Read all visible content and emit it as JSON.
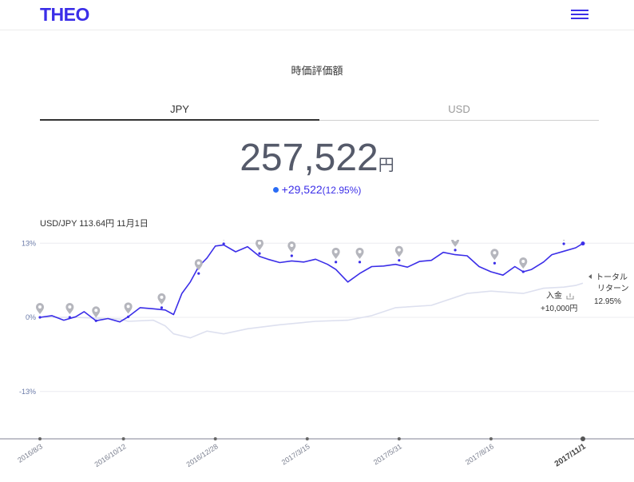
{
  "header": {
    "logo": "THEO",
    "menu_icon": "hamburger-menu-icon"
  },
  "page": {
    "title": "時価評価額"
  },
  "tabs": [
    {
      "label": "JPY",
      "active": true
    },
    {
      "label": "USD",
      "active": false
    }
  ],
  "summary": {
    "value": "257,522",
    "unit": "円",
    "change": "+29,522",
    "change_pct": "(12.95%)"
  },
  "rate_line": "USD/JPY 113.64円 11月1日",
  "annotations": {
    "total_return_label_1": "トータル",
    "total_return_label_2": "リターン",
    "total_return_value": "12.95%",
    "deposit_label": "入金",
    "deposit_amount": "+10,000円"
  },
  "colors": {
    "brand": "#3b2ee8",
    "benchmark": "#dde0ef",
    "marker": "#b0b0b8"
  },
  "chart_data": {
    "type": "line",
    "y_tick_labels": [
      "13%",
      "0%",
      "-13%"
    ],
    "y_ticks": [
      13,
      0,
      -13
    ],
    "ylim": [
      -21.3,
      13.6
    ],
    "xlim": [
      "2016/8/3",
      "2017/11/1"
    ],
    "x_tick_labels": [
      "2016/8/3",
      "2016/10/12",
      "2016/12/28",
      "2017/3/15",
      "2017/5/31",
      "2017/8/16",
      "2017/11/1"
    ],
    "x_tick_dates": [
      "2016-08-03",
      "2016-10-12",
      "2016-12-28",
      "2017-03-15",
      "2017-05-31",
      "2017-08-16",
      "2017-11-01"
    ],
    "series": [
      {
        "role": "portfolio",
        "points": [
          [
            "2016-08-03",
            0
          ],
          [
            "2016-08-13",
            0.3
          ],
          [
            "2016-08-23",
            -0.5
          ],
          [
            "2016-09-02",
            0.1
          ],
          [
            "2016-09-09",
            1.0
          ],
          [
            "2016-09-19",
            -0.6
          ],
          [
            "2016-09-29",
            -0.2
          ],
          [
            "2016-10-09",
            -0.8
          ],
          [
            "2016-10-16",
            0.1
          ],
          [
            "2016-10-26",
            1.7
          ],
          [
            "2016-11-06",
            1.5
          ],
          [
            "2016-11-16",
            1.3
          ],
          [
            "2016-11-23",
            0.5
          ],
          [
            "2016-11-30",
            4.2
          ],
          [
            "2016-12-07",
            6.2
          ],
          [
            "2016-12-14",
            8.9
          ],
          [
            "2016-12-21",
            10.4
          ],
          [
            "2016-12-28",
            12.5
          ],
          [
            "2017-01-04",
            12.7
          ],
          [
            "2017-01-14",
            11.5
          ],
          [
            "2017-01-24",
            12.4
          ],
          [
            "2017-02-03",
            10.7
          ],
          [
            "2017-02-10",
            10.2
          ],
          [
            "2017-02-20",
            9.6
          ],
          [
            "2017-03-02",
            9.9
          ],
          [
            "2017-03-12",
            9.7
          ],
          [
            "2017-03-22",
            10.2
          ],
          [
            "2017-04-01",
            9.3
          ],
          [
            "2017-04-08",
            8.4
          ],
          [
            "2017-04-18",
            6.2
          ],
          [
            "2017-04-28",
            7.7
          ],
          [
            "2017-05-08",
            8.9
          ],
          [
            "2017-05-18",
            9.0
          ],
          [
            "2017-05-28",
            9.3
          ],
          [
            "2017-06-07",
            8.8
          ],
          [
            "2017-06-17",
            9.8
          ],
          [
            "2017-06-27",
            10.0
          ],
          [
            "2017-07-07",
            11.4
          ],
          [
            "2017-07-17",
            11.0
          ],
          [
            "2017-07-27",
            10.8
          ],
          [
            "2017-08-06",
            8.9
          ],
          [
            "2017-08-16",
            8.0
          ],
          [
            "2017-08-26",
            7.4
          ],
          [
            "2017-09-05",
            8.9
          ],
          [
            "2017-09-12",
            8.0
          ],
          [
            "2017-09-19",
            8.4
          ],
          [
            "2017-09-29",
            9.7
          ],
          [
            "2017-10-06",
            11.0
          ],
          [
            "2017-10-16",
            11.6
          ],
          [
            "2017-10-26",
            12.2
          ],
          [
            "2017-11-01",
            12.95
          ]
        ]
      },
      {
        "role": "benchmark",
        "points": [
          [
            "2016-08-03",
            0
          ],
          [
            "2016-09-02",
            0
          ],
          [
            "2016-10-09",
            -0.3
          ],
          [
            "2016-10-16",
            -0.7
          ],
          [
            "2016-11-06",
            -0.5
          ],
          [
            "2016-11-16",
            -1.5
          ],
          [
            "2016-11-23",
            -2.9
          ],
          [
            "2016-12-07",
            -3.6
          ],
          [
            "2016-12-21",
            -2.4
          ],
          [
            "2017-01-04",
            -2.9
          ],
          [
            "2017-01-24",
            -2.0
          ],
          [
            "2017-02-20",
            -1.3
          ],
          [
            "2017-03-22",
            -0.7
          ],
          [
            "2017-04-18",
            -0.5
          ],
          [
            "2017-05-08",
            0.3
          ],
          [
            "2017-05-28",
            1.7
          ],
          [
            "2017-06-27",
            2.1
          ],
          [
            "2017-07-27",
            4.2
          ],
          [
            "2017-08-16",
            4.6
          ],
          [
            "2017-09-12",
            4.2
          ],
          [
            "2017-09-29",
            5.1
          ],
          [
            "2017-10-16",
            5.3
          ],
          [
            "2017-10-26",
            5.6
          ],
          [
            "2017-11-01",
            6.0
          ]
        ]
      }
    ],
    "markers": [
      {
        "date": "2016-08-03",
        "value": 0,
        "kind": "past"
      },
      {
        "date": "2016-08-28",
        "value": 0,
        "kind": "past"
      },
      {
        "date": "2016-09-19",
        "value": -0.6,
        "kind": "past"
      },
      {
        "date": "2016-10-16",
        "value": 0.1,
        "kind": "past"
      },
      {
        "date": "2016-11-13",
        "value": 1.7,
        "kind": "past"
      },
      {
        "date": "2016-12-14",
        "value": 7.7,
        "kind": "past"
      },
      {
        "date": "2017-01-04",
        "value": 12.9,
        "kind": "past"
      },
      {
        "date": "2017-02-03",
        "value": 11.2,
        "kind": "past"
      },
      {
        "date": "2017-03-02",
        "value": 10.8,
        "kind": "past"
      },
      {
        "date": "2017-04-08",
        "value": 9.7,
        "kind": "past"
      },
      {
        "date": "2017-04-28",
        "value": 9.7,
        "kind": "past"
      },
      {
        "date": "2017-05-31",
        "value": 10.0,
        "kind": "past"
      },
      {
        "date": "2017-07-17",
        "value": 11.8,
        "kind": "past"
      },
      {
        "date": "2017-08-19",
        "value": 9.5,
        "kind": "past"
      },
      {
        "date": "2017-09-12",
        "value": 8.0,
        "kind": "past"
      },
      {
        "date": "2017-10-16",
        "value": 12.9,
        "kind": "deposit"
      },
      {
        "date": "2017-11-01",
        "value": 12.95,
        "kind": "current"
      }
    ]
  }
}
